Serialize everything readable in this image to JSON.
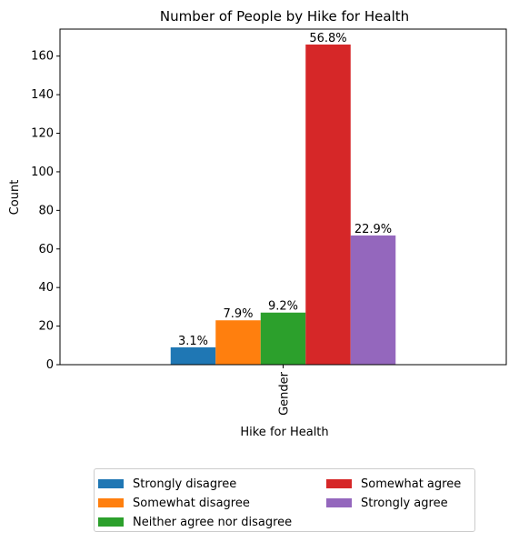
{
  "chart_data": {
    "type": "bar",
    "title": "Number of People by Hike for Health",
    "xlabel": "Hike for Health",
    "ylabel": "Count",
    "categories": [
      "Gender"
    ],
    "ylim": [
      0,
      174
    ],
    "yticks": [
      "0",
      "20",
      "40",
      "60",
      "80",
      "100",
      "120",
      "140",
      "160"
    ],
    "series": [
      {
        "name": "Strongly disagree",
        "values": [
          9
        ],
        "label": "3.1%",
        "color": "#1f77b4"
      },
      {
        "name": "Somewhat disagree",
        "values": [
          23
        ],
        "label": "7.9%",
        "color": "#ff7f0e"
      },
      {
        "name": "Neither agree nor disagree",
        "values": [
          27
        ],
        "label": "9.2%",
        "color": "#2ca02c"
      },
      {
        "name": "Somewhat agree",
        "values": [
          166
        ],
        "label": "56.8%",
        "color": "#d62728"
      },
      {
        "name": "Strongly agree",
        "values": [
          67
        ],
        "label": "22.9%",
        "color": "#9467bd"
      }
    ],
    "legend_position": "bottom-center",
    "grid": false
  }
}
